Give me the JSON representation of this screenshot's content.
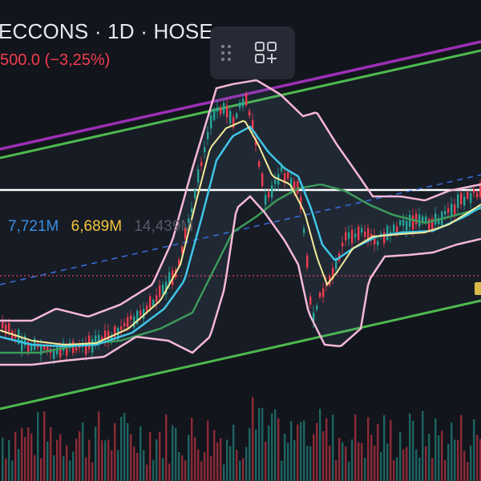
{
  "header": {
    "title": "ECCONS · 1D · HOSE",
    "change": "500.0 (−3,25%)"
  },
  "volume_legend": {
    "values": [
      "7,721M",
      "6,689M",
      "14,439M"
    ],
    "colors": [
      "#3a8fe0",
      "#f5c53a",
      "#555a66"
    ]
  },
  "toolbar": {
    "icons": [
      "drag-handle-icon",
      "add-layout-icon"
    ]
  },
  "colors": {
    "background": "#12151c",
    "up": "#26a69a",
    "down": "#f23d4f",
    "channel_green": "#4cbb4c",
    "channel_purple": "#9b2fb5",
    "bollinger": "#f5b8d8",
    "ma_fast": "#f5ec9a",
    "ma_mid": "#3fc6e8",
    "ma_slow": "#3d9a5a",
    "level_white": "#ffffff",
    "level_red": "#e0475a",
    "trend_dashed": "#3a6fe0"
  },
  "chart_data": {
    "type": "candlestick",
    "series_hint": "daily price candles with moving averages, Bollinger bands, trend channel and volume bars",
    "indicators": [
      "bollinger-bands",
      "moving-average-fast",
      "moving-average-mid",
      "moving-average-slow"
    ],
    "grid": false
  }
}
